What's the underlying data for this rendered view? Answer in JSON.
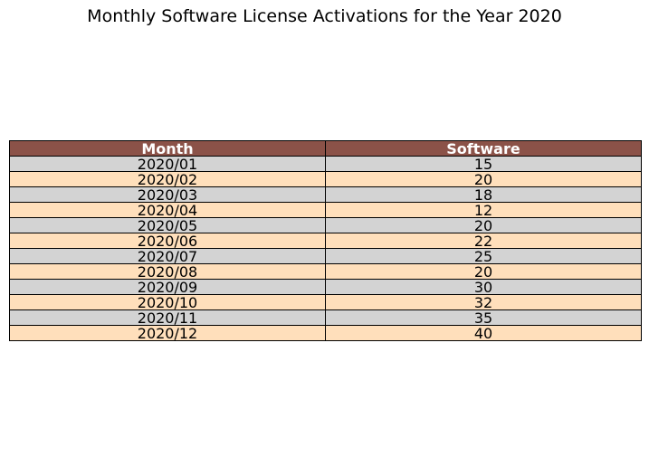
{
  "chart_data": {
    "type": "table",
    "title": "Monthly Software License Activations for the Year 2020",
    "columns": [
      "Month",
      "Software"
    ],
    "rows": [
      [
        "2020/01",
        "15"
      ],
      [
        "2020/02",
        "20"
      ],
      [
        "2020/03",
        "18"
      ],
      [
        "2020/04",
        "12"
      ],
      [
        "2020/05",
        "20"
      ],
      [
        "2020/06",
        "22"
      ],
      [
        "2020/07",
        "25"
      ],
      [
        "2020/08",
        "20"
      ],
      [
        "2020/09",
        "30"
      ],
      [
        "2020/10",
        "32"
      ],
      [
        "2020/11",
        "35"
      ],
      [
        "2020/12",
        "40"
      ]
    ],
    "colors": {
      "header_background": "#8b5248",
      "header_text": "#ffffff",
      "row_odd": "#d3d3d3",
      "row_even": "#ffdfbb"
    }
  }
}
